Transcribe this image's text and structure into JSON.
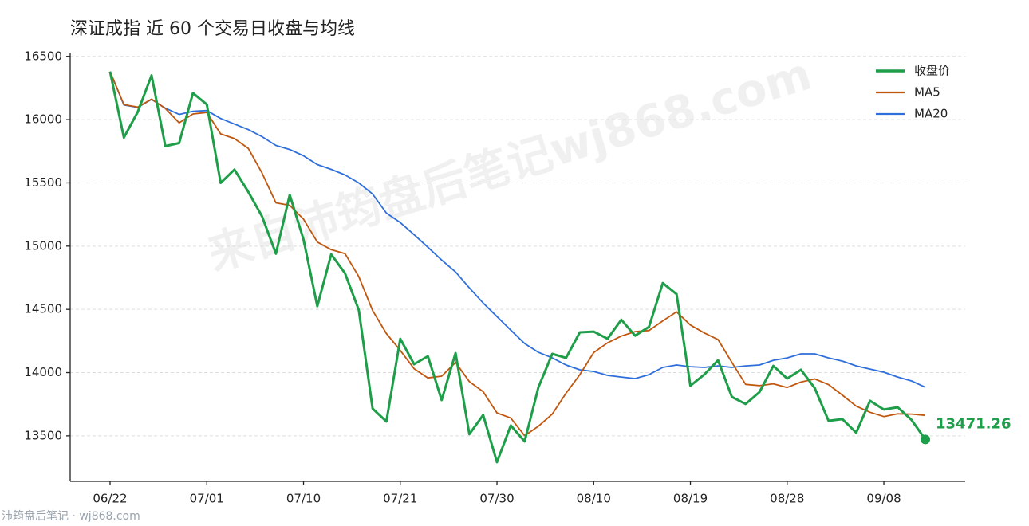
{
  "chart_data": {
    "type": "line",
    "title": "深证成指 近 60 个交易日收盘与均线",
    "watermark": "来自沛筠盘后笔记wj868.com",
    "footer": "沛筠盘后笔记 · wj868.com",
    "categories": [
      "06/22",
      null,
      null,
      null,
      null,
      null,
      null,
      "07/01",
      null,
      null,
      null,
      null,
      null,
      null,
      "07/10",
      null,
      null,
      null,
      null,
      null,
      null,
      "07/21",
      null,
      null,
      null,
      null,
      null,
      null,
      "07/30",
      null,
      null,
      null,
      null,
      null,
      null,
      "08/10",
      null,
      null,
      null,
      null,
      null,
      null,
      "08/19",
      null,
      null,
      null,
      null,
      null,
      null,
      "08/28",
      null,
      null,
      null,
      null,
      null,
      null,
      "09/08",
      null,
      null,
      null
    ],
    "series": [
      {
        "name": "收盘价",
        "color": "#1e9e49",
        "width": 3,
        "values": [
          16380,
          15858,
          16060,
          16350,
          15790,
          15815,
          16210,
          16120,
          15500,
          15605,
          15430,
          15235,
          14940,
          15405,
          15053,
          14525,
          14935,
          14785,
          14495,
          13715,
          13613,
          14267,
          14066,
          14129,
          13783,
          14154,
          13513,
          13664,
          13292,
          13582,
          13456,
          13884,
          14148,
          14116,
          14318,
          14324,
          14267,
          14418,
          14292,
          14362,
          14708,
          14620,
          13896,
          13984,
          14097,
          13808,
          13752,
          13846,
          14053,
          13953,
          14022,
          13877,
          13619,
          13632,
          13525,
          13777,
          13708,
          13726,
          13626,
          13471.26
        ],
        "value_labels": [
          null,
          null,
          null,
          null,
          null,
          null,
          null,
          null,
          null,
          null,
          null,
          null,
          null,
          null,
          null,
          null,
          null,
          null,
          null,
          null,
          null,
          null,
          null,
          null,
          null,
          null,
          null,
          null,
          null,
          null,
          null,
          null,
          null,
          null,
          null,
          null,
          null,
          null,
          null,
          null,
          null,
          null,
          null,
          null,
          null,
          null,
          null,
          null,
          null,
          null,
          null,
          null,
          null,
          null,
          null,
          null,
          null,
          null,
          null,
          "13471.26"
        ]
      },
      {
        "name": "MA5",
        "color": "#c0570f",
        "width": 1.8,
        "values": [
          16380,
          16119,
          16099,
          16162,
          16088,
          15975,
          16045,
          16057,
          15887,
          15850,
          15773,
          15578,
          15342,
          15323,
          15213,
          15032,
          14972,
          14941,
          14759,
          14491,
          14309,
          14175,
          14031,
          13958,
          13972,
          14080,
          13929,
          13849,
          13681,
          13641,
          13501,
          13576,
          13672,
          13837,
          13984,
          14158,
          14235,
          14289,
          14324,
          14333,
          14409,
          14480,
          14376,
          14314,
          14261,
          14081,
          13907,
          13897,
          13911,
          13882,
          13925,
          13950,
          13905,
          13821,
          13735,
          13686,
          13652,
          13674,
          13672,
          13662
        ]
      },
      {
        "name": "MA20",
        "color": "#2f6fdb",
        "width": 1.8,
        "values": [
          16380,
          16116,
          16097,
          16160,
          16091,
          16041,
          16066,
          16072,
          16009,
          15965,
          15921,
          15865,
          15796,
          15764,
          15714,
          15645,
          15607,
          15563,
          15500,
          15412,
          15261,
          15186,
          15091,
          14991,
          14890,
          14796,
          14670,
          14550,
          14443,
          14336,
          14230,
          14160,
          14116,
          14060,
          14022,
          14009,
          13978,
          13965,
          13953,
          13984,
          14041,
          14060,
          14047,
          14041,
          14053,
          14041,
          14053,
          14060,
          14097,
          14116,
          14148,
          14148,
          14116,
          14091,
          14053,
          14028,
          14003,
          13965,
          13934,
          13884
        ]
      }
    ],
    "ylim": [
      13140,
      16530
    ],
    "yticks": [
      13500,
      14000,
      14500,
      15000,
      15500,
      16000,
      16500
    ],
    "grid": true,
    "legend": "upper right"
  }
}
